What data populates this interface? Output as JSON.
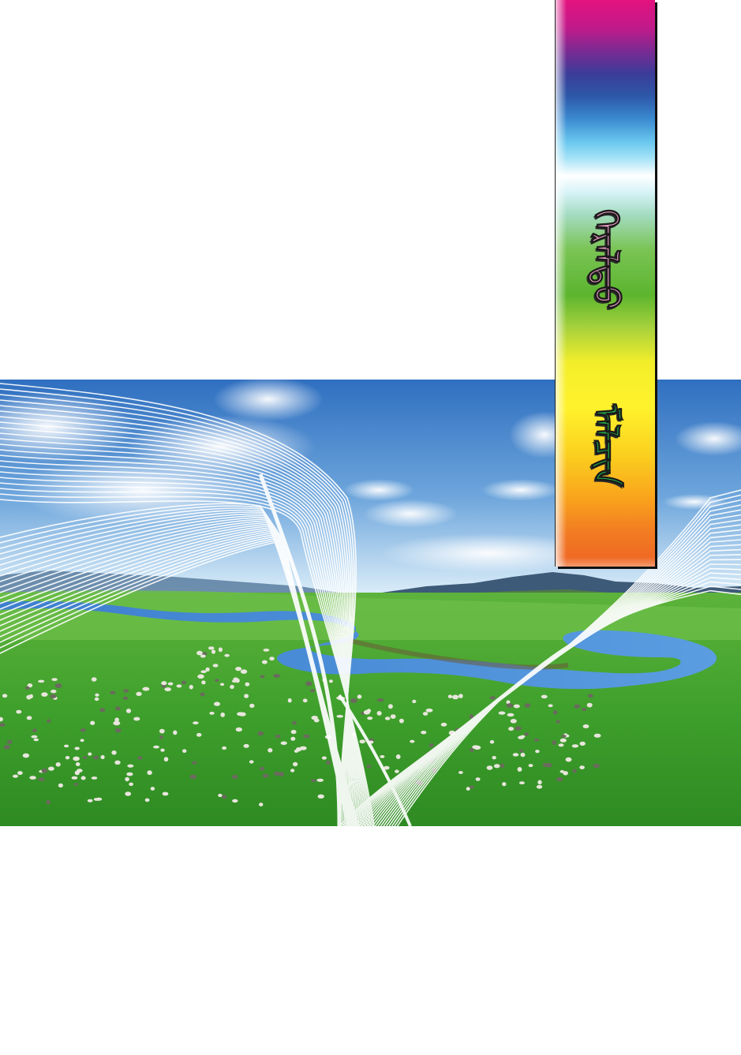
{
  "banner": {
    "title_line_1": "ᠭᠡᠷᠡᠯᠲᠦ",
    "title_line_2": "ᠮᠠᠯᠴᠢᠨ"
  },
  "colors": {
    "sky_top": "#2f6fc0",
    "sky_bottom": "#d9ecf8",
    "grass": "#3fa02c",
    "river": "#3d7fcf",
    "mountains": "#3d5a78",
    "banner_top": "#e4127f",
    "banner_bottom": "#ee6424"
  },
  "icons": {
    "landscape": "steppe-grassland-photo",
    "overlay": "white-curved-line-waves"
  }
}
